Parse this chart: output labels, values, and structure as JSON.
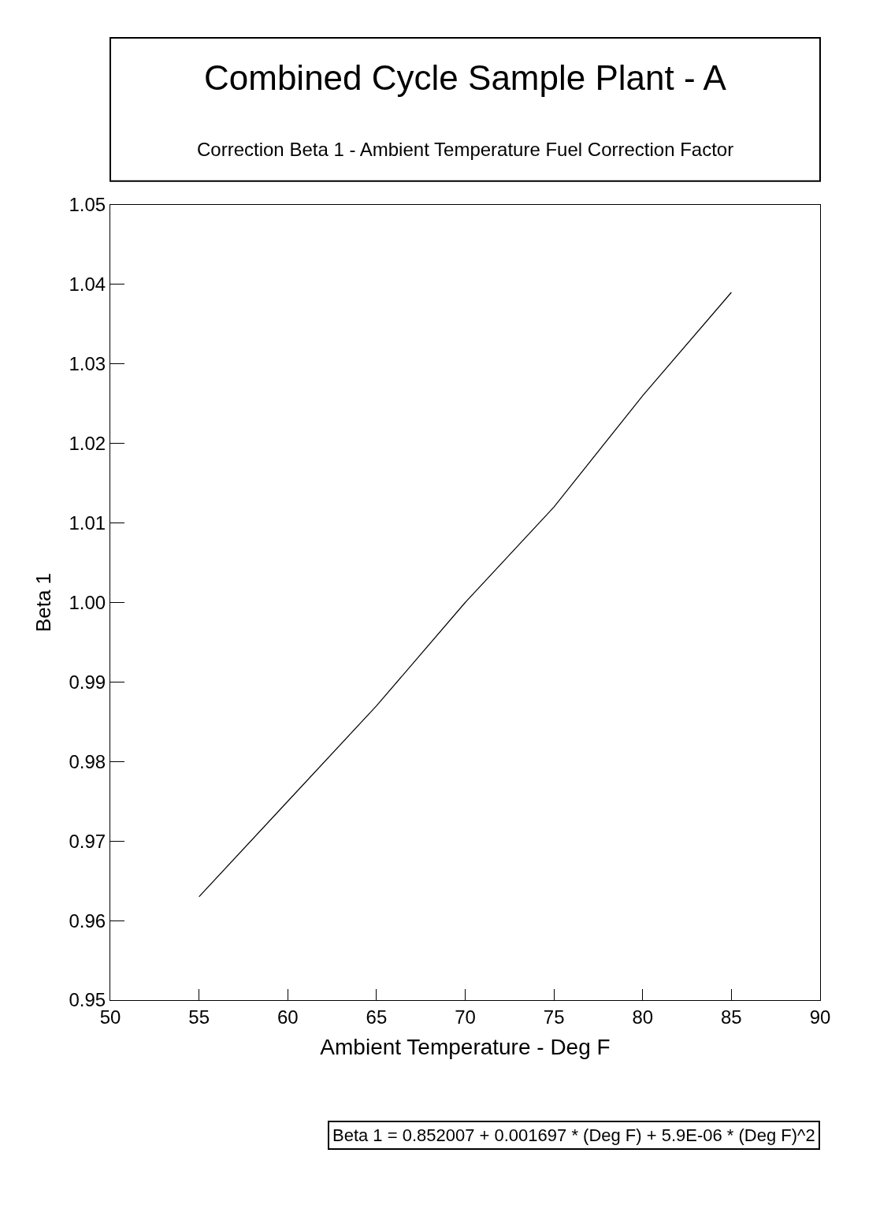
{
  "chart_data": {
    "type": "line",
    "title": "Combined Cycle Sample Plant - A",
    "subtitle": "Correction Beta 1 - Ambient Temperature Fuel Correction Factor",
    "xlabel": "Ambient Temperature - Deg F",
    "ylabel": "Beta 1",
    "annotations": [
      "Beta 1 = 0.852007 + 0.001697 * (Deg F) + 5.9E-06 * (Deg F)^2"
    ],
    "x": [
      55,
      60,
      65,
      70,
      75,
      80,
      85
    ],
    "series": [
      {
        "color": "#000000",
        "values": [
          0.963,
          0.975,
          0.987,
          1.0,
          1.012,
          1.026,
          1.039
        ]
      }
    ],
    "xlim": [
      50,
      90
    ],
    "xticks": [
      50,
      55,
      60,
      65,
      70,
      75,
      80,
      85,
      90
    ],
    "ylim": [
      0.95,
      1.05
    ],
    "yticks": [
      0.95,
      0.96,
      0.97,
      0.98,
      0.99,
      {
        "value": 1.0,
        "label": "1.00"
      },
      1.01,
      1.02,
      1.03,
      1.04,
      1.05
    ],
    "marker": "none",
    "line_style": "solid"
  }
}
